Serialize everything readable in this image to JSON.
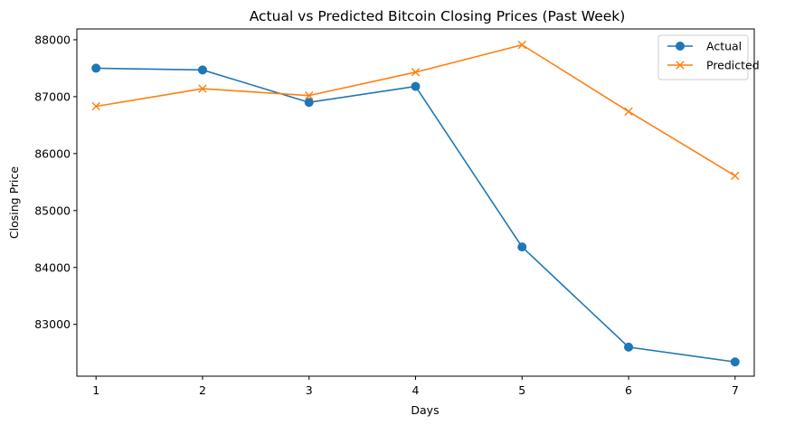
{
  "chart_data": {
    "type": "line",
    "title": "Actual vs Predicted Bitcoin Closing Prices (Past Week)",
    "xlabel": "Days",
    "ylabel": "Closing Price",
    "x": [
      1,
      2,
      3,
      4,
      5,
      6,
      7
    ],
    "xlim": [
      0.82,
      7.18
    ],
    "ylim": [
      82090,
      88190
    ],
    "xticks": [
      1,
      2,
      3,
      4,
      5,
      6,
      7
    ],
    "yticks": [
      83000,
      84000,
      85000,
      86000,
      87000,
      88000
    ],
    "grid": false,
    "legend": "top-right",
    "series": [
      {
        "name": "Actual",
        "color": "#1f77b4",
        "marker": "circle",
        "values": [
          87500,
          87470,
          86900,
          87180,
          84360,
          82600,
          82340
        ]
      },
      {
        "name": "Predicted",
        "color": "#ff7f0e",
        "marker": "x",
        "values": [
          86830,
          87140,
          87020,
          87430,
          87910,
          86740,
          85610
        ]
      }
    ]
  }
}
